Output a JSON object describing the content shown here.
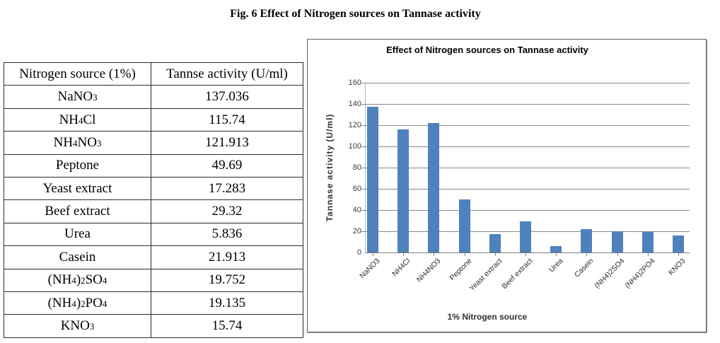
{
  "figure_title": "Fig. 6 Effect of Nitrogen sources on Tannase activity",
  "table": {
    "headers": [
      "Nitrogen source (1%)",
      "Tannse activity (U/ml)"
    ],
    "rows": [
      {
        "source": "NaNO|3|",
        "value": "137.036"
      },
      {
        "source": "NH|4|Cl",
        "value": "115.74"
      },
      {
        "source": "NH|4|NO|3|",
        "value": "121.913"
      },
      {
        "source": "Peptone",
        "value": "49.69"
      },
      {
        "source": "Yeast extract",
        "value": "17.283"
      },
      {
        "source": "Beef extract",
        "value": "29.32"
      },
      {
        "source": "Urea",
        "value": "5.836"
      },
      {
        "source": "Casein",
        "value": "21.913"
      },
      {
        "source": "(NH|4|)|2|SO|4|",
        "value": "19.752"
      },
      {
        "source": "(NH|4|)|2|PO|4|",
        "value": "19.135"
      },
      {
        "source": "KNO|3|",
        "value": "15.74"
      }
    ]
  },
  "chart_data": {
    "type": "bar",
    "title": "Effect of Nitrogen sources on Tannase activity",
    "xlabel": "1% Nitrogen source",
    "ylabel": "Tannase activity (U/ml)",
    "categories": [
      "NaNO3",
      "NH4Cl",
      "NH4NO3",
      "Peptone",
      "Yeast extract",
      "Beef extract",
      "Urea",
      "Casein",
      "(NH4)2SO4",
      "(NH4)2PO4",
      "KNO3"
    ],
    "values": [
      137.036,
      115.74,
      121.913,
      49.69,
      17.283,
      29.32,
      5.836,
      21.913,
      19.752,
      19.135,
      15.74
    ],
    "ylim": [
      0,
      160
    ],
    "ytick_step": 20,
    "bar_color": "#4f81bd",
    "gridline_color": "#878787",
    "grid": true,
    "legend": false
  }
}
